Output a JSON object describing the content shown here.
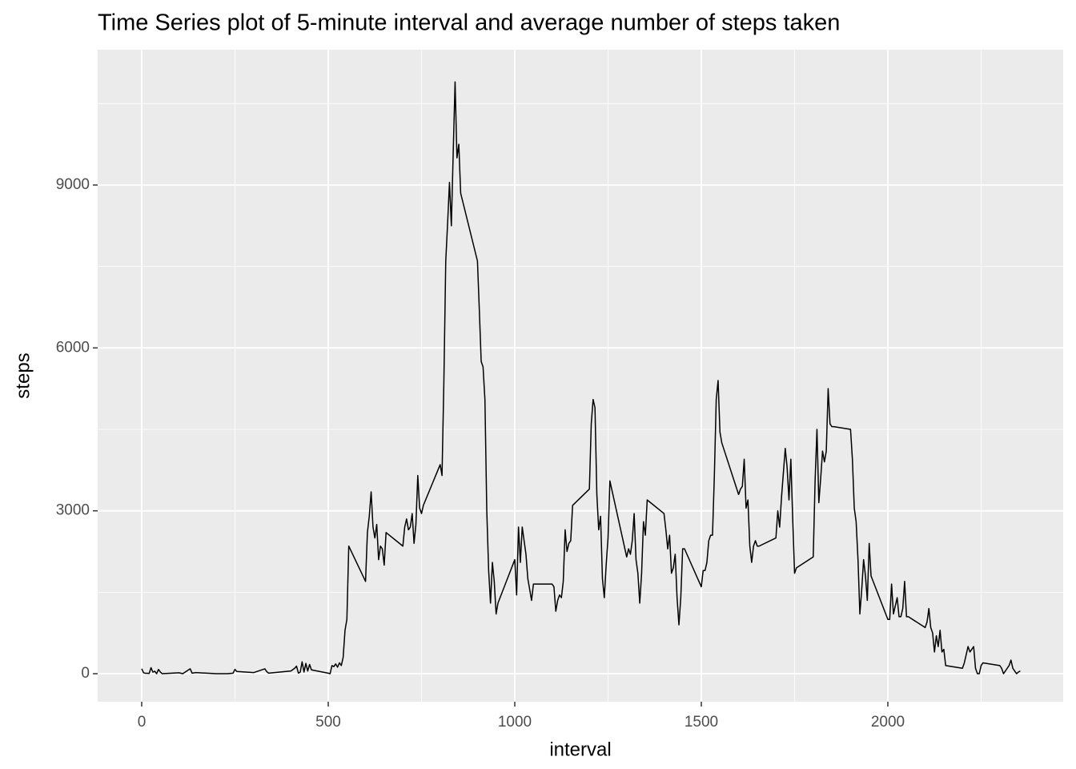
{
  "chart_data": {
    "type": "line",
    "title": "Time Series plot of 5-minute interval and average number of steps taken",
    "xlabel": "interval",
    "ylabel": "steps",
    "x": [
      0,
      5,
      10,
      15,
      20,
      25,
      30,
      35,
      40,
      45,
      50,
      55,
      100,
      110,
      130,
      135,
      145,
      200,
      230,
      245,
      250,
      255,
      300,
      330,
      335,
      340,
      400,
      410,
      415,
      420,
      425,
      430,
      435,
      440,
      445,
      450,
      455,
      500,
      505,
      510,
      515,
      520,
      525,
      530,
      535,
      540,
      545,
      550,
      555,
      600,
      605,
      610,
      615,
      620,
      625,
      630,
      635,
      640,
      645,
      650,
      655,
      700,
      705,
      710,
      715,
      720,
      725,
      730,
      735,
      740,
      745,
      750,
      755,
      800,
      805,
      810,
      815,
      820,
      825,
      830,
      835,
      840,
      845,
      850,
      855,
      900,
      905,
      910,
      915,
      920,
      925,
      930,
      935,
      940,
      945,
      950,
      955,
      1000,
      1005,
      1010,
      1015,
      1020,
      1025,
      1030,
      1035,
      1040,
      1045,
      1050,
      1055,
      1100,
      1105,
      1110,
      1115,
      1120,
      1125,
      1130,
      1135,
      1140,
      1145,
      1150,
      1155,
      1200,
      1205,
      1210,
      1215,
      1220,
      1225,
      1230,
      1235,
      1240,
      1245,
      1250,
      1255,
      1300,
      1305,
      1310,
      1315,
      1320,
      1325,
      1330,
      1335,
      1340,
      1345,
      1350,
      1355,
      1400,
      1405,
      1410,
      1415,
      1420,
      1425,
      1430,
      1435,
      1440,
      1445,
      1450,
      1455,
      1500,
      1505,
      1510,
      1515,
      1520,
      1525,
      1530,
      1535,
      1540,
      1545,
      1550,
      1555,
      1600,
      1605,
      1610,
      1615,
      1620,
      1625,
      1630,
      1635,
      1640,
      1645,
      1650,
      1655,
      1700,
      1705,
      1710,
      1715,
      1720,
      1725,
      1730,
      1735,
      1740,
      1745,
      1750,
      1755,
      1800,
      1805,
      1810,
      1815,
      1820,
      1825,
      1830,
      1835,
      1840,
      1845,
      1850,
      1855,
      1900,
      1905,
      1910,
      1915,
      1920,
      1925,
      1930,
      1935,
      1940,
      1945,
      1950,
      1955,
      2000,
      2005,
      2010,
      2015,
      2020,
      2025,
      2030,
      2035,
      2040,
      2045,
      2050,
      2055,
      2100,
      2105,
      2110,
      2115,
      2120,
      2125,
      2130,
      2135,
      2140,
      2145,
      2150,
      2155,
      2200,
      2205,
      2210,
      2215,
      2220,
      2225,
      2230,
      2235,
      2240,
      2245,
      2250,
      2255,
      2300,
      2305,
      2310,
      2315,
      2320,
      2325,
      2330,
      2335,
      2340,
      2345,
      2350,
      2355
    ],
    "values": [
      91,
      18,
      7,
      8,
      4,
      111,
      28,
      46,
      0,
      78,
      30,
      0,
      17,
      0,
      90,
      10,
      20,
      0,
      0,
      10,
      80,
      40,
      20,
      90,
      40,
      10,
      50,
      100,
      140,
      10,
      30,
      220,
      30,
      190,
      50,
      170,
      70,
      10,
      0,
      150,
      130,
      180,
      120,
      200,
      150,
      300,
      800,
      1000,
      2350,
      1700,
      2600,
      2900,
      3350,
      2700,
      2500,
      2750,
      2100,
      2350,
      2300,
      2000,
      2600,
      2350,
      2700,
      2850,
      2650,
      2700,
      2950,
      2400,
      2750,
      3650,
      3050,
      2950,
      3100,
      3850,
      3650,
      5400,
      7600,
      8300,
      9050,
      8250,
      9600,
      10900,
      9500,
      9750,
      8850,
      7600,
      6700,
      5750,
      5650,
      5050,
      3000,
      1900,
      1300,
      2050,
      1700,
      1100,
      1300,
      2100,
      1450,
      2700,
      2050,
      2700,
      2450,
      2200,
      1750,
      1550,
      1350,
      1650,
      1650,
      1650,
      1600,
      1150,
      1350,
      1450,
      1400,
      1700,
      2650,
      2250,
      2400,
      2450,
      3100,
      3400,
      4600,
      5050,
      4900,
      3300,
      2650,
      2900,
      1750,
      1400,
      2000,
      2500,
      3550,
      2150,
      2300,
      2200,
      2450,
      2950,
      2100,
      1850,
      1300,
      1850,
      2800,
      2550,
      3200,
      2950,
      2650,
      2300,
      2550,
      1850,
      1950,
      2200,
      1400,
      900,
      1400,
      2300,
      2300,
      1600,
      1900,
      1900,
      2050,
      2450,
      2550,
      2550,
      3650,
      5050,
      5400,
      4450,
      4250,
      3300,
      3400,
      3450,
      3950,
      3050,
      3200,
      2350,
      2050,
      2350,
      2450,
      2350,
      2350,
      2500,
      3000,
      2700,
      3250,
      3700,
      4150,
      3800,
      3200,
      3950,
      2850,
      1850,
      1950,
      2150,
      3550,
      4500,
      3150,
      3600,
      4100,
      3900,
      4100,
      5250,
      4600,
      4550,
      4550,
      4500,
      3950,
      3050,
      2800,
      2100,
      1100,
      1550,
      2100,
      1800,
      1350,
      2400,
      1800,
      1000,
      1000,
      1650,
      1100,
      1250,
      1400,
      1050,
      1050,
      1200,
      1700,
      1050,
      1050,
      850,
      950,
      1200,
      850,
      750,
      400,
      700,
      500,
      800,
      400,
      450,
      150,
      100,
      200,
      350,
      500,
      400,
      450,
      500,
      100,
      0,
      0,
      150,
      200,
      150,
      100,
      0,
      50,
      100,
      150,
      250,
      100,
      50,
      0,
      30,
      50
    ],
    "color": "#000000",
    "xlim": [
      -118,
      2470
    ],
    "ylim": [
      -516,
      11493
    ],
    "xticks": [
      0,
      500,
      1000,
      1500,
      2000
    ],
    "yticks": [
      0,
      3000,
      6000,
      9000
    ],
    "x_minor_grid": [
      250,
      750,
      1250,
      1750,
      2250
    ],
    "y_minor_grid": [
      1500,
      4500,
      7500,
      10500
    ],
    "grid": true
  }
}
